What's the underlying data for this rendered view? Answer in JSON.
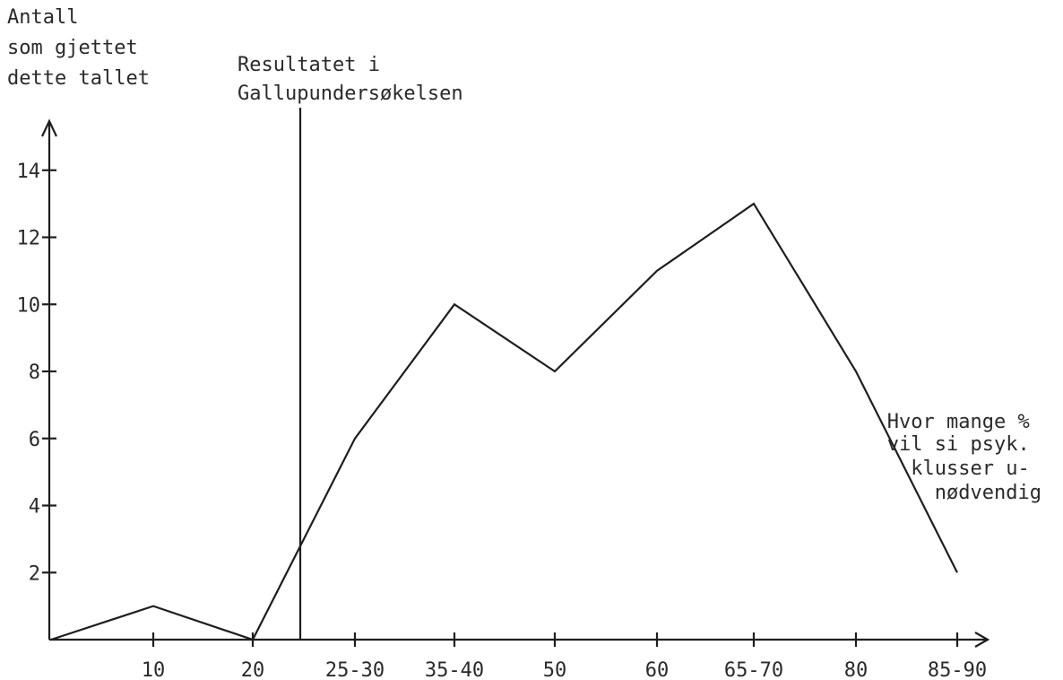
{
  "chart_data": {
    "type": "line",
    "title": "",
    "ylabel": [
      "Antall",
      "som gjettet",
      "dette tallet"
    ],
    "xlabel": [
      "Hvor mange %",
      "vil si psyk.",
      "klusser u-",
      "nødvendig"
    ],
    "categories": [
      "",
      "10",
      "20",
      "25-30",
      "35-40",
      "50",
      "60",
      "65-70",
      "80",
      "85-90"
    ],
    "y_ticks": [
      "2",
      "4",
      "6",
      "8",
      "10",
      "12",
      "14"
    ],
    "ylim": [
      0,
      16
    ],
    "grid": false,
    "legend": "none",
    "series": [
      {
        "values": [
          0,
          1,
          0,
          6,
          10,
          8,
          11,
          13,
          8,
          2
        ]
      }
    ],
    "reference_line": {
      "label": [
        "Resultatet i",
        "Gallupundersøkelsen"
      ],
      "x_value": 22.5
    }
  }
}
